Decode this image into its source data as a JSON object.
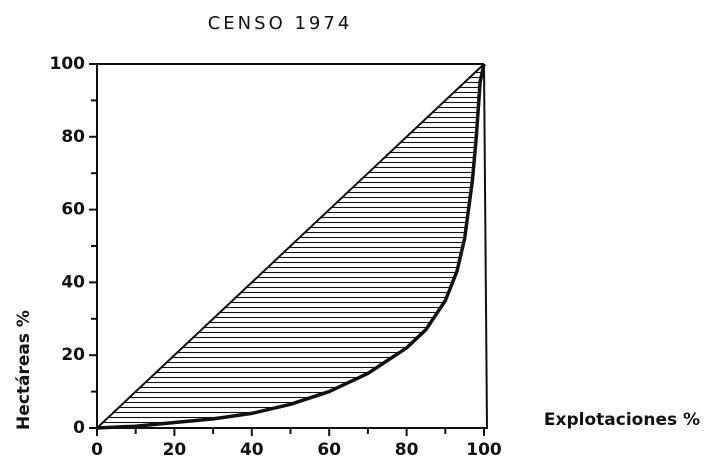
{
  "chart_data": {
    "type": "line",
    "title": "CENSO 1974",
    "xlabel": "Explotaciones %",
    "ylabel": "Hectáreas %",
    "x": [
      0,
      10,
      20,
      30,
      40,
      50,
      60,
      70,
      80,
      85,
      90,
      93,
      95,
      97,
      98,
      99,
      100
    ],
    "values": [
      0,
      0.5,
      1.5,
      2.5,
      4,
      6.5,
      10,
      15,
      22,
      27,
      35,
      43,
      52,
      68,
      80,
      95,
      100
    ],
    "color": "#111111",
    "xlim": [
      0,
      100
    ],
    "ylim": [
      0,
      100
    ],
    "xticks": [
      0,
      20,
      40,
      60,
      80,
      100
    ],
    "yticks": [
      0,
      20,
      40,
      60,
      80,
      100
    ],
    "xticks_minor": [
      10,
      30,
      50,
      70,
      90
    ],
    "yticks_minor": [
      10,
      30,
      50,
      70,
      90
    ],
    "hatch": true
  }
}
